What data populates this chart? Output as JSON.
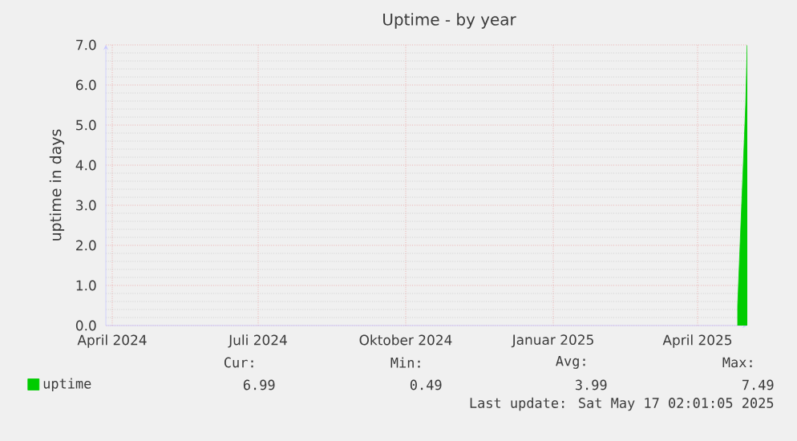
{
  "chart_data": {
    "type": "area",
    "title": "Uptime - by year",
    "ylabel": "uptime in days",
    "x": [
      "2025-05-11",
      "2025-05-12",
      "2025-05-13",
      "2025-05-14",
      "2025-05-15",
      "2025-05-16",
      "2025-05-17"
    ],
    "series": [
      {
        "name": "uptime",
        "color": "#00cc00",
        "values": [
          0.49,
          1.5,
          2.5,
          3.5,
          4.5,
          5.5,
          6.99
        ]
      }
    ],
    "xlim": [
      "2024-04-12",
      "2025-05-17"
    ],
    "xticks": [
      {
        "value": "2024-04-16",
        "label": "April 2024"
      },
      {
        "value": "2024-07-16",
        "label": "Juli 2024"
      },
      {
        "value": "2024-10-16",
        "label": "Oktober 2024"
      },
      {
        "value": "2025-01-16",
        "label": "Januar 2025"
      },
      {
        "value": "2025-04-16",
        "label": "April 2025"
      }
    ],
    "ylim": [
      0,
      7
    ],
    "yticks": [
      {
        "value": 0,
        "label": "0.0"
      },
      {
        "value": 1,
        "label": "1.0"
      },
      {
        "value": 2,
        "label": "2.0"
      },
      {
        "value": 3,
        "label": "3.0"
      },
      {
        "value": 4,
        "label": "4.0"
      },
      {
        "value": 5,
        "label": "5.0"
      },
      {
        "value": 6,
        "label": "6.0"
      },
      {
        "value": 7,
        "label": "7.0"
      }
    ],
    "grid": true,
    "legend": "bottom left",
    "annotations": [
      "Cur:",
      "Min:",
      "Avg:",
      "Max:",
      "6.99",
      "0.49",
      "3.99",
      "7.49",
      "Last update: Sat May 17 02:01:05 2025"
    ]
  }
}
